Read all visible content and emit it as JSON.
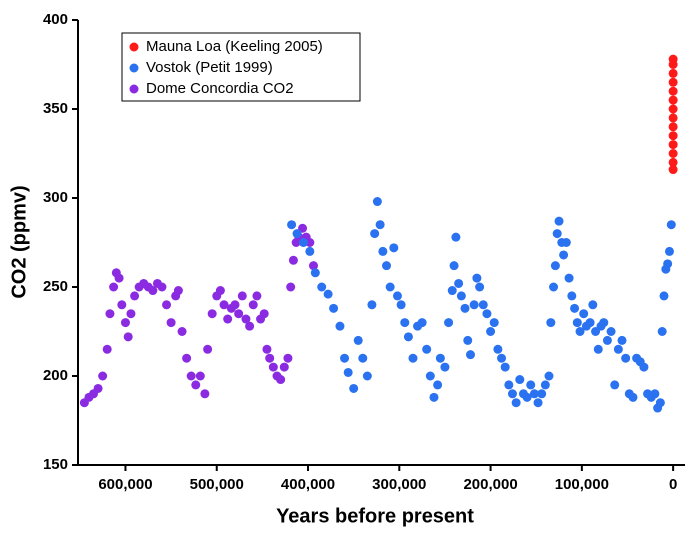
{
  "chart_data": {
    "type": "scatter",
    "xlabel": "Years before present",
    "ylabel": "CO2 (ppmv)",
    "xlim": [
      652000,
      -13000
    ],
    "ylim": [
      150,
      400
    ],
    "xticks": [
      {
        "value": 600000,
        "label": "600,000"
      },
      {
        "value": 500000,
        "label": "500,000"
      },
      {
        "value": 400000,
        "label": "400,000"
      },
      {
        "value": 300000,
        "label": "300,000"
      },
      {
        "value": 200000,
        "label": "200,000"
      },
      {
        "value": 100000,
        "label": "100,000"
      },
      0
    ],
    "yticks": [
      150,
      200,
      250,
      300,
      350,
      400
    ],
    "legend": "upper-left",
    "series": [
      {
        "name": "Mauna Loa (Keeling 2005)",
        "color": "#ff1a1a",
        "x": [
          0,
          0,
          0,
          0,
          0,
          0,
          0,
          0,
          0,
          0,
          0,
          0,
          0,
          0
        ],
        "values": [
          316,
          320,
          325,
          330,
          335,
          340,
          345,
          350,
          355,
          360,
          365,
          370,
          375,
          378
        ]
      },
      {
        "name": "Vostok (Petit 1999)",
        "color": "#2a72f0",
        "x": [
          418000,
          412000,
          405000,
          398000,
          392000,
          385000,
          378000,
          372000,
          365000,
          360000,
          356000,
          350000,
          345000,
          340000,
          335000,
          330000,
          327000,
          324000,
          321000,
          318000,
          314000,
          310000,
          306000,
          302000,
          298000,
          294000,
          290000,
          285000,
          280000,
          275000,
          270000,
          266000,
          262000,
          258000,
          255000,
          250000,
          246000,
          242000,
          240000,
          238000,
          235000,
          232000,
          228000,
          225000,
          222000,
          218000,
          215000,
          212000,
          208000,
          204000,
          200000,
          196000,
          192000,
          188000,
          184000,
          180000,
          176000,
          172000,
          168000,
          164000,
          160000,
          156000,
          152000,
          148000,
          144000,
          140000,
          136000,
          134000,
          131000,
          129000,
          127000,
          125000,
          122000,
          120000,
          117000,
          114000,
          111000,
          108000,
          105000,
          102000,
          98000,
          95000,
          91000,
          88000,
          85000,
          82000,
          79000,
          76000,
          72000,
          68000,
          64000,
          60000,
          56000,
          52000,
          48000,
          44000,
          40000,
          36000,
          32000,
          28000,
          24000,
          20000,
          17000,
          14000,
          12000,
          10000,
          8000,
          6000,
          4000,
          2000
        ],
        "values": [
          285,
          280,
          275,
          270,
          258,
          250,
          246,
          238,
          228,
          210,
          202,
          193,
          220,
          210,
          200,
          240,
          280,
          298,
          285,
          270,
          262,
          250,
          272,
          245,
          240,
          230,
          222,
          210,
          228,
          230,
          215,
          200,
          188,
          195,
          210,
          205,
          230,
          248,
          262,
          278,
          252,
          245,
          238,
          220,
          212,
          240,
          255,
          250,
          240,
          235,
          225,
          230,
          215,
          210,
          205,
          195,
          190,
          185,
          198,
          190,
          188,
          195,
          190,
          185,
          190,
          195,
          200,
          230,
          250,
          262,
          280,
          287,
          275,
          268,
          275,
          255,
          245,
          238,
          230,
          225,
          235,
          228,
          230,
          240,
          225,
          215,
          228,
          230,
          220,
          225,
          195,
          215,
          220,
          210,
          190,
          188,
          210,
          208,
          205,
          190,
          188,
          190,
          182,
          185,
          225,
          245,
          260,
          263,
          270,
          285
        ]
      },
      {
        "name": "Dome Concordia CO2",
        "color": "#8a2be2",
        "x": [
          645000,
          640000,
          635000,
          630000,
          625000,
          620000,
          617000,
          613000,
          610000,
          607000,
          604000,
          600000,
          597000,
          594000,
          590000,
          585000,
          580000,
          575000,
          570000,
          565000,
          560000,
          555000,
          550000,
          545000,
          542000,
          538000,
          533000,
          528000,
          523000,
          518000,
          513000,
          510000,
          505000,
          500000,
          496000,
          492000,
          488000,
          484000,
          480000,
          476000,
          472000,
          468000,
          464000,
          460000,
          456000,
          452000,
          448000,
          445000,
          442000,
          438000,
          434000,
          430000,
          426000,
          422000,
          419000,
          416000,
          413000,
          410000,
          406000,
          402000,
          398000,
          394000
        ],
        "values": [
          185,
          188,
          190,
          193,
          200,
          215,
          235,
          250,
          258,
          255,
          240,
          230,
          222,
          235,
          245,
          250,
          252,
          250,
          248,
          252,
          250,
          240,
          230,
          245,
          248,
          225,
          210,
          200,
          195,
          200,
          190,
          215,
          235,
          245,
          248,
          240,
          232,
          238,
          240,
          235,
          245,
          232,
          228,
          240,
          245,
          232,
          235,
          215,
          210,
          205,
          200,
          198,
          205,
          210,
          250,
          265,
          275,
          278,
          283,
          278,
          275,
          262
        ]
      }
    ]
  }
}
